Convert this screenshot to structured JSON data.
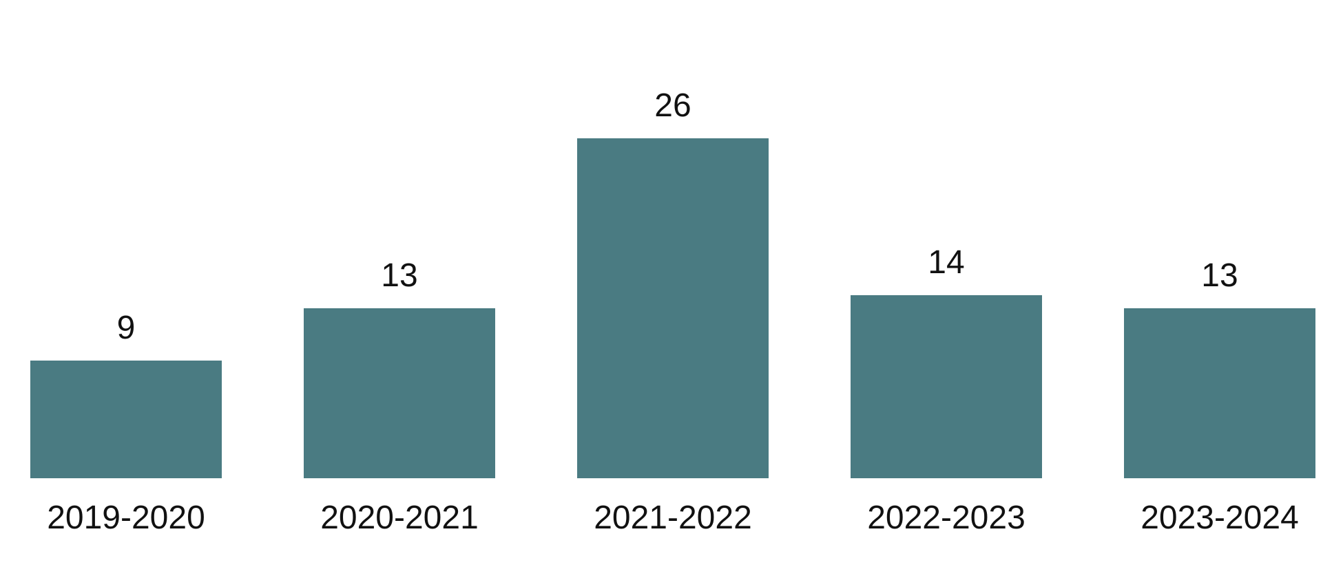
{
  "chart_data": {
    "type": "bar",
    "categories": [
      "2019-2020",
      "2020-2021",
      "2021-2022",
      "2022-2023",
      "2023-2024"
    ],
    "values": [
      9,
      13,
      26,
      14,
      13
    ],
    "title": "",
    "xlabel": "",
    "ylabel": "",
    "ylim": [
      0,
      26
    ],
    "grid": false,
    "legend": "none",
    "data_labels": true,
    "bar_color": "#4a7b82",
    "axes_visible": false
  }
}
